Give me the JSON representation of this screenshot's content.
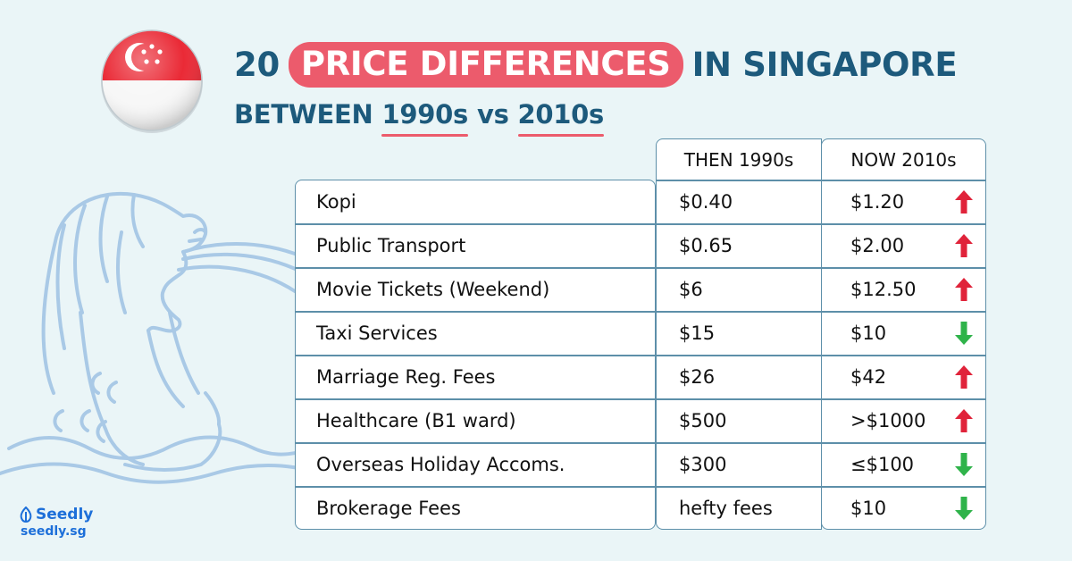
{
  "headline": {
    "prefix": "20",
    "highlight": "PRICE DIFFERENCES",
    "suffix": "IN SINGAPORE"
  },
  "subheadline": {
    "prefix": "BETWEEN",
    "then": "1990s",
    "middle": "vs",
    "now": "2010s"
  },
  "table": {
    "columns": {
      "then": "THEN 1990s",
      "now": "NOW 2010s"
    },
    "rows": [
      {
        "item": "Kopi",
        "then": "$0.40",
        "now": "$1.20",
        "trend": "up"
      },
      {
        "item": "Public Transport",
        "then": "$0.65",
        "now": "$2.00",
        "trend": "up"
      },
      {
        "item": "Movie Tickets (Weekend)",
        "then": "$6",
        "now": "$12.50",
        "trend": "up"
      },
      {
        "item": "Taxi Services",
        "then": "$15",
        "now": "$10",
        "trend": "down"
      },
      {
        "item": "Marriage Reg. Fees",
        "then": "$26",
        "now": "$42",
        "trend": "up"
      },
      {
        "item": "Healthcare (B1 ward)",
        "then": "$500",
        "now": ">$1000",
        "trend": "up"
      },
      {
        "item": "Overseas Holiday Accoms.",
        "then": "$300",
        "now": "≤$100",
        "trend": "down"
      },
      {
        "item": "Brokerage Fees",
        "then": "hefty fees",
        "now": "$10",
        "trend": "down"
      }
    ]
  },
  "logo": {
    "brand": "Seedly",
    "url": "seedly.sg",
    "icon": "seedly-leaf-icon"
  },
  "icons": {
    "flag": "singapore-flag-icon",
    "illustration": "merlion-icon",
    "up": "up-arrow-icon",
    "down": "down-arrow-icon"
  },
  "colors": {
    "primary": "#1d5a7c",
    "accent": "#ec5b6c",
    "up": "#e0233a",
    "down": "#2fb34a",
    "background": "#eaf5f7",
    "illustration": "#a9c9e6",
    "logo": "#1d6fd9"
  }
}
